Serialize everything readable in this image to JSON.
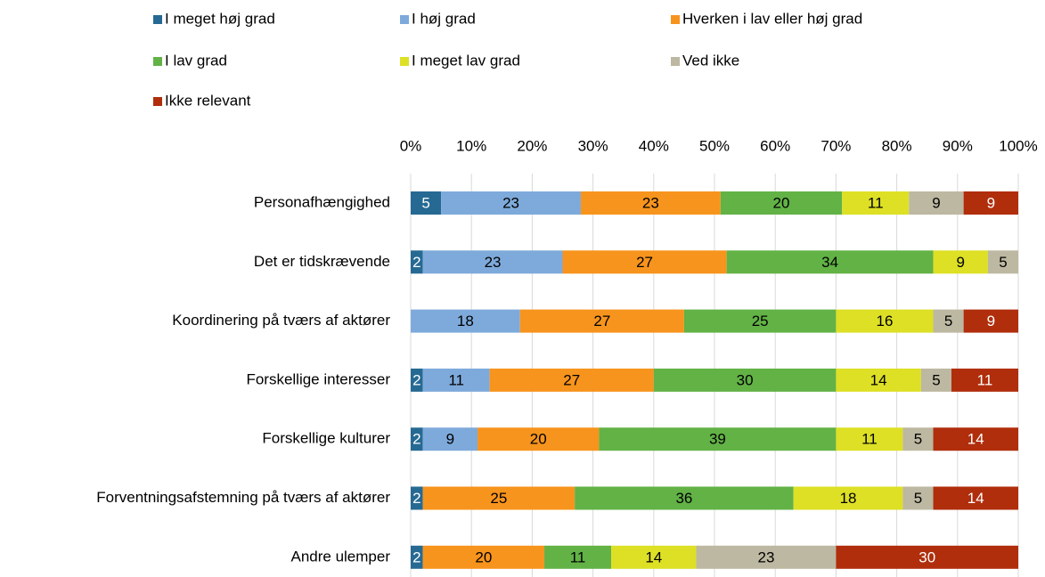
{
  "chart_data": {
    "type": "stacked_bar_horizontal",
    "categories": [
      "Personafhængighed",
      "Det er tidskrævende",
      "Koordinering på tværs af aktører",
      "Forskellige interesser",
      "Forskellige kulturer",
      "Forventningsafstemning på tværs af aktører",
      "Andre ulemper"
    ],
    "series": [
      {
        "name": "I meget høj grad",
        "color": "#266a93",
        "label_color": "#ffffff",
        "values": [
          5,
          2,
          null,
          2,
          2,
          2,
          2
        ]
      },
      {
        "name": "I høj grad",
        "color": "#7eaadb",
        "label_color": "#000000",
        "values": [
          23,
          23,
          18,
          11,
          9,
          null,
          null
        ]
      },
      {
        "name": "Hverken i lav eller høj grad",
        "color": "#f7941d",
        "label_color": "#000000",
        "values": [
          23,
          27,
          27,
          27,
          20,
          25,
          20
        ]
      },
      {
        "name": "I lav grad",
        "color": "#62b246",
        "label_color": "#000000",
        "values": [
          20,
          34,
          25,
          30,
          39,
          36,
          11
        ]
      },
      {
        "name": "I meget lav grad",
        "color": "#dde025",
        "label_color": "#000000",
        "values": [
          11,
          9,
          16,
          14,
          11,
          18,
          14
        ]
      },
      {
        "name": "Ved ikke",
        "color": "#bdb8a1",
        "label_color": "#000000",
        "values": [
          9,
          5,
          5,
          5,
          5,
          5,
          23
        ]
      },
      {
        "name": "Ikke relevant",
        "color": "#b02e0c",
        "label_color": "#ffffff",
        "values": [
          9,
          null,
          9,
          11,
          14,
          14,
          30
        ]
      }
    ],
    "xlim": [
      0,
      100
    ],
    "xticks": [
      {
        "value": 0,
        "label": "0%"
      },
      {
        "value": 10,
        "label": "10%"
      },
      {
        "value": 20,
        "label": "20%"
      },
      {
        "value": 30,
        "label": "30%"
      },
      {
        "value": 40,
        "label": "40%"
      },
      {
        "value": 50,
        "label": "50%"
      },
      {
        "value": 60,
        "label": "60%"
      },
      {
        "value": 70,
        "label": "70%"
      },
      {
        "value": 80,
        "label": "80%"
      },
      {
        "value": 90,
        "label": "90%"
      },
      {
        "value": 100,
        "label": "100%"
      }
    ],
    "grid": true,
    "legend": "top"
  }
}
